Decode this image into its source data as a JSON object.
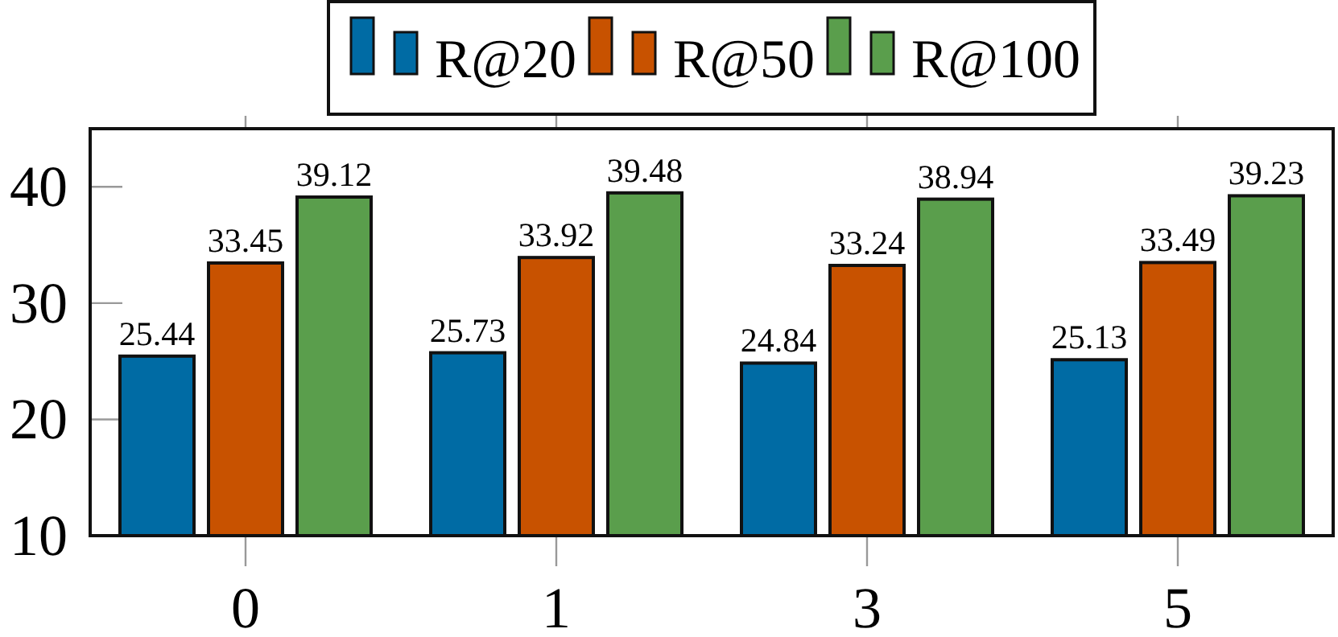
{
  "chart_data": {
    "type": "bar",
    "categories": [
      "0",
      "1",
      "3",
      "5"
    ],
    "series": [
      {
        "name": "R@20",
        "color": "#006ba4",
        "values": [
          25.44,
          25.73,
          24.84,
          25.13
        ]
      },
      {
        "name": "R@50",
        "color": "#c85200",
        "values": [
          33.45,
          33.92,
          33.24,
          33.49
        ]
      },
      {
        "name": "R@100",
        "color": "#5a9e4c",
        "values": [
          39.12,
          39.48,
          38.94,
          39.23
        ]
      }
    ],
    "ylim": [
      10,
      45
    ],
    "yticks": [
      10,
      20,
      30,
      40
    ],
    "data_labels": true,
    "legend": "top",
    "grid": false
  }
}
